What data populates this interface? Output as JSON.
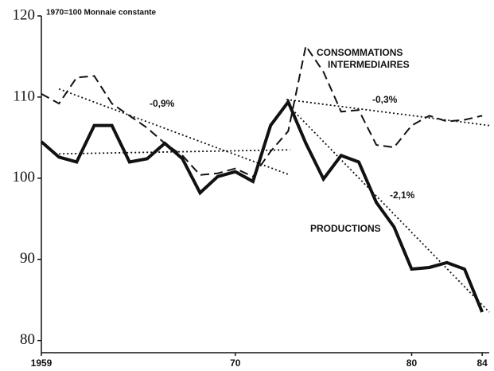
{
  "chart_data": {
    "type": "line",
    "subtitle": "1970=100  Monnaie constante",
    "x": [
      1959,
      1960,
      1961,
      1962,
      1963,
      1964,
      1965,
      1966,
      1967,
      1968,
      1969,
      1970,
      1971,
      1972,
      1973,
      1974,
      1975,
      1976,
      1977,
      1978,
      1979,
      1980,
      1981,
      1982,
      1983,
      1984
    ],
    "series": [
      {
        "name": "PRODUCTIONS",
        "color": "#111111",
        "linestyle": "solid",
        "values": [
          104.5,
          102.6,
          102,
          106.5,
          106.5,
          102,
          102.4,
          104.3,
          102.4,
          98.2,
          100.2,
          100.8,
          99.6,
          106.5,
          109.4,
          104.3,
          99.9,
          102.8,
          102,
          97,
          94,
          88.8,
          89,
          89.6,
          88.8,
          83.5
        ]
      },
      {
        "name": "CONSOMMATIONS INTERMEDIAIRES",
        "color": "#111111",
        "linestyle": "dashed",
        "values": [
          110.4,
          109.2,
          112.4,
          112.6,
          109.2,
          107.7,
          106.2,
          104.3,
          102.8,
          100.4,
          100.6,
          101.2,
          100.2,
          103.3,
          105.8,
          116.3,
          113.1,
          108.2,
          108.4,
          104.1,
          103.8,
          106.5,
          107.7,
          107,
          107.2,
          107.7
        ]
      }
    ],
    "trends": [
      {
        "x": [
          1960,
          1973.1
        ],
        "values": [
          111,
          100.4
        ]
      },
      {
        "x": [
          1960,
          1973.1
        ],
        "values": [
          103,
          103.5
        ]
      },
      {
        "x": [
          1972.9,
          1984.4
        ],
        "values": [
          109.7,
          106.5
        ]
      },
      {
        "x": [
          1972.9,
          1984.4
        ],
        "values": [
          109.2,
          83.5
        ]
      }
    ],
    "annotations": {
      "rate_cons_early": "-0,9%",
      "rate_cons_late": "-0,3%",
      "rate_prod_late": "-2,1%",
      "label_prod": "PRODUCTIONS",
      "label_cons_1": "CONSOMMATIONS",
      "label_cons_2": "INTERMEDIAIRES"
    },
    "xlim": [
      1959,
      1984.4
    ],
    "xticks": [
      1959,
      {
        "value": 1970,
        "label": "70"
      },
      {
        "value": 1980,
        "label": "80"
      },
      {
        "value": 1984,
        "label": "84"
      }
    ],
    "ylim": [
      78.5,
      120
    ],
    "yticks": [
      80,
      90,
      100,
      110,
      120
    ]
  }
}
